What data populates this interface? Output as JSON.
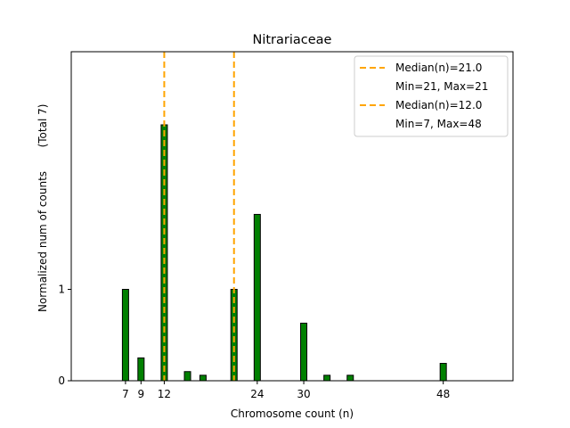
{
  "chart_data": {
    "type": "bar",
    "title": "Nitrariaceae",
    "xlabel": "Chromosome count (n)",
    "ylabel": "Normalized num of counts",
    "ylabel_total": "(Total 7)",
    "xlim": [
      0,
      57
    ],
    "ylim": [
      0,
      3.6
    ],
    "xticks": [
      7,
      9,
      12,
      24,
      30,
      48
    ],
    "yticks": [
      {
        "value": 0,
        "label": "0"
      },
      {
        "value": 1,
        "label": "1"
      }
    ],
    "bar_color": "#008000",
    "bar_edge_color": "#000000",
    "bars": [
      {
        "x": 7,
        "value": 1.0
      },
      {
        "x": 9,
        "value": 0.25
      },
      {
        "x": 12,
        "value": 2.8
      },
      {
        "x": 15,
        "value": 0.1
      },
      {
        "x": 17,
        "value": 0.06
      },
      {
        "x": 21,
        "value": 1.0
      },
      {
        "x": 24,
        "value": 1.82
      },
      {
        "x": 30,
        "value": 0.63
      },
      {
        "x": 33,
        "value": 0.06
      },
      {
        "x": 36,
        "value": 0.06
      },
      {
        "x": 48,
        "value": 0.19
      }
    ],
    "median_lines": [
      {
        "x": 21,
        "color": "#FFA500"
      },
      {
        "x": 12,
        "color": "#FFA500"
      }
    ],
    "legend": {
      "placement": "top-right",
      "entries": [
        {
          "label": "Median(n)=21.0",
          "has_line": true,
          "color": "#FFA500"
        },
        {
          "label": "Min=21, Max=21",
          "has_line": false
        },
        {
          "label": "Median(n)=12.0",
          "has_line": true,
          "color": "#FFA500"
        },
        {
          "label": "Min=7, Max=48",
          "has_line": false
        }
      ]
    }
  }
}
